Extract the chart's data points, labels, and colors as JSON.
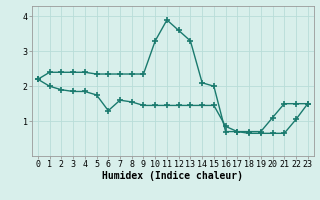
{
  "line1_x": [
    0,
    1,
    2,
    3,
    4,
    5,
    6,
    7,
    8,
    9,
    10,
    11,
    12,
    13,
    14,
    15,
    16,
    17,
    18,
    19,
    20,
    21,
    22,
    23
  ],
  "line1_y": [
    2.2,
    2.4,
    2.4,
    2.4,
    2.4,
    2.35,
    2.35,
    2.35,
    2.35,
    2.35,
    3.3,
    3.9,
    3.6,
    3.3,
    2.1,
    2.0,
    0.7,
    0.7,
    0.7,
    0.7,
    1.1,
    1.5,
    1.5,
    1.5
  ],
  "line2_x": [
    0,
    1,
    2,
    3,
    4,
    5,
    6,
    7,
    8,
    9,
    10,
    11,
    12,
    13,
    14,
    15,
    16,
    17,
    18,
    19,
    20,
    21,
    22,
    23
  ],
  "line2_y": [
    2.2,
    2.0,
    1.9,
    1.85,
    1.85,
    1.75,
    1.3,
    1.6,
    1.55,
    1.45,
    1.45,
    1.45,
    1.45,
    1.45,
    1.45,
    1.45,
    0.85,
    0.7,
    0.65,
    0.65,
    0.65,
    0.65,
    1.05,
    1.5
  ],
  "line_color": "#1a7a6e",
  "bg_color": "#d8efeb",
  "grid_color": "#b8ddd8",
  "xlabel": "Humidex (Indice chaleur)",
  "ylim": [
    0,
    4.3
  ],
  "xlim": [
    -0.5,
    23.5
  ],
  "yticks": [
    1,
    2,
    3,
    4
  ],
  "xticks": [
    0,
    1,
    2,
    3,
    4,
    5,
    6,
    7,
    8,
    9,
    10,
    11,
    12,
    13,
    14,
    15,
    16,
    17,
    18,
    19,
    20,
    21,
    22,
    23
  ],
  "xlabel_fontsize": 7,
  "tick_fontsize": 6,
  "linewidth": 1.0,
  "marker": "+",
  "markersize": 4,
  "markeredgewidth": 1.2
}
